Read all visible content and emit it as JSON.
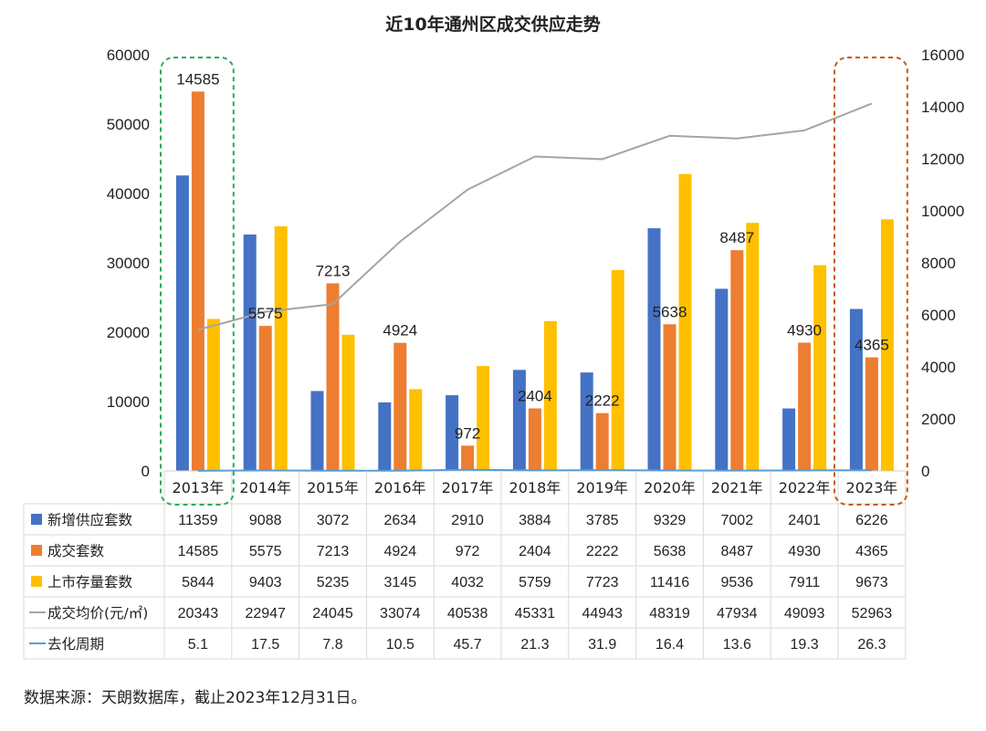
{
  "title": "近10年通州区成交供应走势",
  "source_note": "数据来源：天朗数据库，截止2023年12月31日。",
  "chart_data": {
    "type": "bar",
    "categories": [
      "2013年",
      "2014年",
      "2015年",
      "2016年",
      "2017年",
      "2018年",
      "2019年",
      "2020年",
      "2021年",
      "2022年",
      "2023年"
    ],
    "left_axis": {
      "ticks": [
        "0",
        "10000",
        "20000",
        "30000",
        "40000",
        "50000",
        "60000"
      ],
      "range": [
        0,
        60000
      ]
    },
    "right_axis": {
      "ticks": [
        "0",
        "2000",
        "4000",
        "6000",
        "8000",
        "10000",
        "12000",
        "14000",
        "16000"
      ],
      "range": [
        0,
        16000
      ]
    },
    "series": [
      {
        "name": "新增供应套数",
        "color": "#4472C4",
        "axis": "right",
        "kind": "bar",
        "values": [
          11359,
          9088,
          3072,
          2634,
          2910,
          3884,
          3785,
          9329,
          7002,
          2401,
          6226
        ]
      },
      {
        "name": "成交套数",
        "color": "#ED7D31",
        "axis": "right",
        "kind": "bar",
        "values": [
          14585,
          5575,
          7213,
          4924,
          972,
          2404,
          2222,
          5638,
          8487,
          4930,
          4365
        ],
        "labels": [
          "14585",
          "5575",
          "7213",
          "4924",
          "972",
          "2404",
          "2222",
          "5638",
          "8487",
          "4930",
          "4365"
        ]
      },
      {
        "name": "上市存量套数",
        "color": "#FFC000",
        "axis": "right",
        "kind": "bar",
        "values": [
          5844,
          9403,
          5235,
          3145,
          4032,
          5759,
          7723,
          11416,
          9536,
          7911,
          9673
        ]
      },
      {
        "name": "成交均价(元/㎡)",
        "color": "#A5A5A5",
        "axis": "left",
        "kind": "line",
        "values": [
          20343,
          22947,
          24045,
          33074,
          40538,
          45331,
          44943,
          48319,
          47934,
          49093,
          52963
        ]
      },
      {
        "name": "去化周期",
        "color": "#5B9BD5",
        "axis": "right",
        "kind": "line",
        "values": [
          5.1,
          17.5,
          7.8,
          10.5,
          45.7,
          21.3,
          31.9,
          16.4,
          13.6,
          19.3,
          26.3
        ]
      }
    ],
    "table_rows": [
      {
        "name": "新增供应套数",
        "color": "#4472C4",
        "marker": "square",
        "cells": [
          "11359",
          "9088",
          "3072",
          "2634",
          "2910",
          "3884",
          "3785",
          "9329",
          "7002",
          "2401",
          "6226"
        ]
      },
      {
        "name": "成交套数",
        "color": "#ED7D31",
        "marker": "square",
        "cells": [
          "14585",
          "5575",
          "7213",
          "4924",
          "972",
          "2404",
          "2222",
          "5638",
          "8487",
          "4930",
          "4365"
        ]
      },
      {
        "name": "上市存量套数",
        "color": "#FFC000",
        "marker": "square",
        "cells": [
          "5844",
          "9403",
          "5235",
          "3145",
          "4032",
          "5759",
          "7723",
          "11416",
          "9536",
          "7911",
          "9673"
        ]
      },
      {
        "name": "成交均价(元/㎡)",
        "color": "#A5A5A5",
        "marker": "line",
        "cells": [
          "20343",
          "22947",
          "24045",
          "33074",
          "40538",
          "45331",
          "44943",
          "48319",
          "47934",
          "49093",
          "52963"
        ]
      },
      {
        "name": "去化周期",
        "color": "#5B9BD5",
        "marker": "line",
        "cells": [
          "5.1",
          "17.5",
          "7.8",
          "10.5",
          "45.7",
          "21.3",
          "31.9",
          "16.4",
          "13.6",
          "19.3",
          "26.3"
        ]
      }
    ],
    "highlights": [
      {
        "category": "2013年",
        "color": "#2EAA5A"
      },
      {
        "category": "2023年",
        "color": "#C55A11"
      }
    ],
    "grid": false
  }
}
